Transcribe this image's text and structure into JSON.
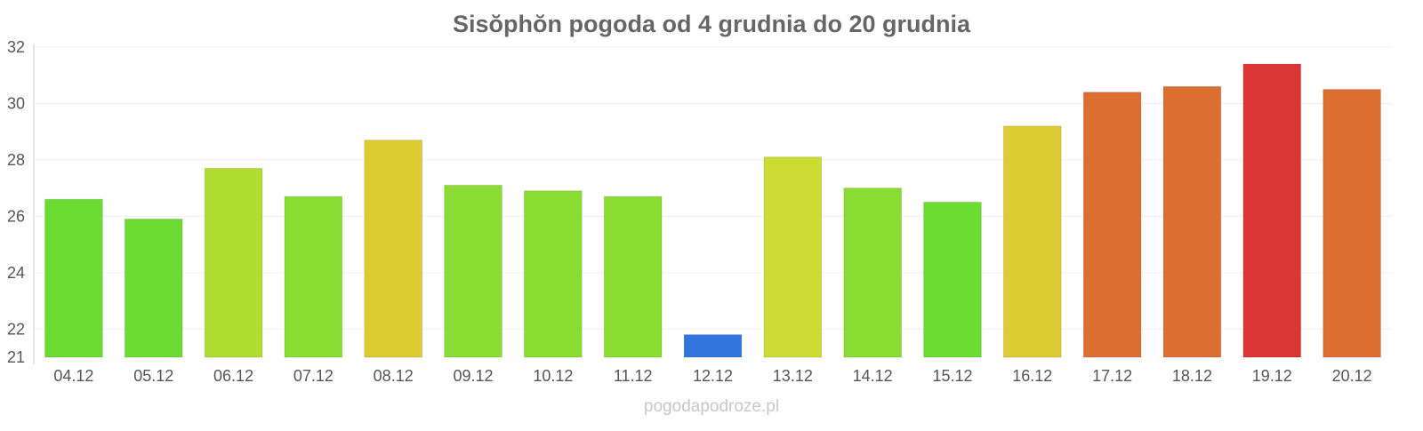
{
  "chart_data": {
    "type": "bar",
    "title": "Sisŏphŏn pogoda od 4 grudnia do 20 grudnia",
    "xlabel": "",
    "ylabel": "",
    "ylim": [
      21,
      32
    ],
    "yticks": [
      21,
      22,
      24,
      26,
      28,
      30,
      32
    ],
    "grid": true,
    "legend": "none",
    "categories": [
      "04.12",
      "05.12",
      "06.12",
      "07.12",
      "08.12",
      "09.12",
      "10.12",
      "11.12",
      "12.12",
      "13.12",
      "14.12",
      "15.12",
      "16.12",
      "17.12",
      "18.12",
      "19.12",
      "20.12"
    ],
    "values": [
      26.6,
      25.9,
      27.7,
      26.7,
      28.7,
      27.1,
      26.9,
      26.7,
      21.8,
      28.1,
      27.0,
      26.5,
      29.2,
      30.4,
      30.6,
      31.4,
      30.5
    ],
    "colors": [
      "#6adc32",
      "#6adc32",
      "#b0dc32",
      "#8adc32",
      "#dccb32",
      "#8adc32",
      "#8adc32",
      "#8adc32",
      "#3275dc",
      "#ccdc32",
      "#8adc32",
      "#6adc32",
      "#dccb32",
      "#dc6e32",
      "#dc6e32",
      "#dc3535",
      "#dc6e32"
    ]
  },
  "watermark": "pogodapodroze.pl"
}
